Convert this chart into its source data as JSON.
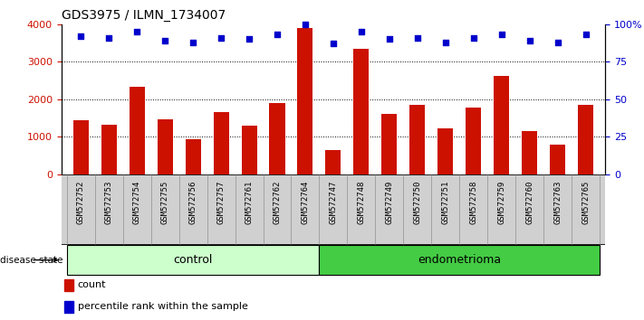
{
  "title": "GDS3975 / ILMN_1734007",
  "samples": [
    "GSM572752",
    "GSM572753",
    "GSM572754",
    "GSM572755",
    "GSM572756",
    "GSM572757",
    "GSM572761",
    "GSM572762",
    "GSM572764",
    "GSM572747",
    "GSM572748",
    "GSM572749",
    "GSM572750",
    "GSM572751",
    "GSM572758",
    "GSM572759",
    "GSM572760",
    "GSM572763",
    "GSM572765"
  ],
  "counts": [
    1450,
    1320,
    2340,
    1470,
    940,
    1650,
    1300,
    1900,
    3900,
    650,
    3330,
    1620,
    1850,
    1220,
    1780,
    2620,
    1150,
    800,
    1850
  ],
  "percentile_ranks": [
    92,
    91,
    95,
    89,
    88,
    91,
    90,
    93,
    100,
    87,
    95,
    90,
    91,
    88,
    91,
    93,
    89,
    88,
    93
  ],
  "groups": [
    "control",
    "control",
    "control",
    "control",
    "control",
    "control",
    "control",
    "control",
    "control",
    "endometrioma",
    "endometrioma",
    "endometrioma",
    "endometrioma",
    "endometrioma",
    "endometrioma",
    "endometrioma",
    "endometrioma",
    "endometrioma",
    "endometrioma"
  ],
  "n_control": 9,
  "n_endo": 10,
  "bar_color": "#cc1100",
  "dot_color": "#0000cc",
  "control_fill": "#ccffcc",
  "endometrioma_fill": "#44cc44",
  "xticklabel_bg": "#d0d0d0",
  "ylim_left": [
    0,
    4000
  ],
  "ylim_right": [
    0,
    100
  ],
  "yticks_left": [
    0,
    1000,
    2000,
    3000,
    4000
  ],
  "ytick_labels_left": [
    "0",
    "1000",
    "2000",
    "3000",
    "4000"
  ],
  "ytick_labels_right": [
    "0",
    "25",
    "50",
    "75",
    "100%"
  ],
  "yticks_right": [
    0,
    25,
    50,
    75,
    100
  ],
  "grid_levels": [
    1000,
    2000,
    3000
  ],
  "legend_count_label": "count",
  "legend_pct_label": "percentile rank within the sample",
  "disease_state_label": "disease state"
}
